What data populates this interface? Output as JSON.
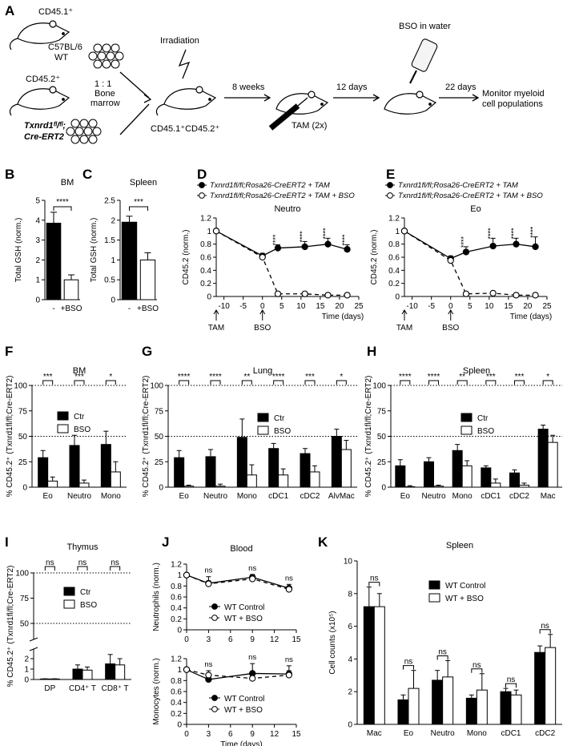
{
  "panel_letters": {
    "A": "A",
    "B": "B",
    "C": "C",
    "D": "D",
    "E": "E",
    "F": "F",
    "G": "G",
    "H": "H",
    "I": "I",
    "J": "J",
    "K": "K"
  },
  "schematic": {
    "donor1_label": "CD45.1⁺",
    "donor1_strain_line1": "C57BL/6",
    "donor1_strain_line2": "WT",
    "donor2_label": "CD45.2⁺",
    "donor2_strain_line1": "Txnrd1ᶠˡ/ᶠˡ;",
    "donor2_strain_line2": "Cre-ERT2",
    "ratio_line1": "1 : 1",
    "ratio_line2": "Bone",
    "ratio_line3": "marrow",
    "irradiation": "Irradiation",
    "chimera_label": "CD45.1⁺CD45.2⁺",
    "step1": "8 weeks",
    "tam": "TAM (2x)",
    "step2": "12 days",
    "bso_water": "BSO in water",
    "step3": "22 days",
    "monitor_line1": "Monitor myeloid",
    "monitor_line2": "cell populations"
  },
  "chart_data": [
    {
      "id": "B",
      "type": "bar",
      "title": "BM",
      "ylabel": "Total GSH (norm.)",
      "categories": [
        "-",
        "+BSO"
      ],
      "values": [
        3.85,
        1.0
      ],
      "errors": [
        0.55,
        0.25
      ],
      "ylim": [
        0,
        5
      ],
      "yticks": [
        0,
        1,
        2,
        3,
        4,
        5
      ],
      "significance": "****"
    },
    {
      "id": "C",
      "type": "bar",
      "title": "Spleen",
      "ylabel": "Total GSH (norm.)",
      "categories": [
        "-",
        "+BSO"
      ],
      "values": [
        1.95,
        1.0
      ],
      "errors": [
        0.15,
        0.18
      ],
      "ylim": [
        0,
        2.5
      ],
      "yticks": [
        0,
        0.5,
        1.0,
        1.5,
        2.0,
        2.5
      ],
      "significance": "***"
    },
    {
      "id": "D",
      "type": "line",
      "title": "Neutro",
      "ylabel": "CD45.2 (norm.)",
      "xlabel": "Time (days)",
      "xlim": [
        -12,
        25
      ],
      "ylim": [
        0,
        1.2
      ],
      "xticks": [
        -10,
        -5,
        0,
        5,
        10,
        15,
        20,
        25
      ],
      "yticks": [
        0,
        0.2,
        0.4,
        0.6,
        0.8,
        1.0,
        1.2
      ],
      "arrows": [
        "TAM",
        "BSO"
      ],
      "series": [
        {
          "name": "Txnrd1fl/fl;Rosa26-CreERT2 + TAM",
          "x": [
            -12,
            0,
            4,
            11,
            17,
            22
          ],
          "y": [
            1.0,
            0.62,
            0.74,
            0.76,
            0.8,
            0.72
          ],
          "err": [
            0.03,
            0.04,
            0.05,
            0.08,
            0.09,
            0.07
          ]
        },
        {
          "name": "Txnrd1fl/fl;Rosa26-CreERT2 + TAM + BSO",
          "x": [
            -12,
            0,
            4,
            11,
            17,
            22
          ],
          "y": [
            1.0,
            0.6,
            0.04,
            0.04,
            0.02,
            0.02
          ],
          "err": [
            0.03,
            0.03,
            0.01,
            0.01,
            0.01,
            0.01
          ]
        }
      ],
      "sig": [
        "****",
        "****",
        "****",
        "****"
      ]
    },
    {
      "id": "E",
      "type": "line",
      "title": "Eo",
      "ylabel": "CD45.2 (norm.)",
      "xlabel": "Time (days)",
      "xlim": [
        -12,
        25
      ],
      "ylim": [
        0,
        1.2
      ],
      "xticks": [
        -10,
        -5,
        0,
        5,
        10,
        15,
        20,
        25
      ],
      "yticks": [
        0,
        0.2,
        0.4,
        0.6,
        0.8,
        1.0,
        1.2
      ],
      "arrows": [
        "TAM",
        "BSO"
      ],
      "series": [
        {
          "name": "Txnrd1fl/fl;Rosa26-CreERT2 + TAM",
          "x": [
            -12,
            0,
            4,
            11,
            17,
            22
          ],
          "y": [
            1.0,
            0.58,
            0.68,
            0.77,
            0.8,
            0.76
          ],
          "err": [
            0.03,
            0.04,
            0.08,
            0.12,
            0.09,
            0.15
          ]
        },
        {
          "name": "Txnrd1fl/fl;Rosa26-CreERT2 + TAM + BSO",
          "x": [
            -12,
            0,
            4,
            11,
            17,
            22
          ],
          "y": [
            1.0,
            0.55,
            0.04,
            0.05,
            0.02,
            0.02
          ],
          "err": [
            0.03,
            0.03,
            0.01,
            0.02,
            0.01,
            0.01
          ]
        }
      ],
      "sig": [
        "****",
        "****",
        "****",
        "****"
      ]
    },
    {
      "id": "F",
      "type": "bar",
      "title": "BM",
      "ylabel": "% CD45.2⁺ (Txnrd1fl/fl;Cre-ERT2)",
      "categories": [
        "Eo",
        "Neutro",
        "Mono"
      ],
      "series": [
        {
          "name": "Ctr",
          "values": [
            29,
            41,
            42
          ],
          "err": [
            7,
            10,
            13
          ]
        },
        {
          "name": "BSO",
          "values": [
            6,
            4,
            15
          ],
          "err": [
            4,
            3,
            10
          ]
        }
      ],
      "ylim": [
        0,
        100
      ],
      "yticks": [
        0,
        25,
        50,
        75,
        100
      ],
      "sig": [
        "***",
        "***",
        "*"
      ]
    },
    {
      "id": "G",
      "type": "bar",
      "title": "Lung",
      "ylabel": "% CD45.2⁺ (Txnrd1fl/fl;Cre-ERT2)",
      "categories": [
        "Eo",
        "Neutro",
        "Mono",
        "cDC1",
        "cDC2",
        "AlvMac"
      ],
      "series": [
        {
          "name": "Ctr",
          "values": [
            29,
            30,
            49,
            38,
            33,
            50
          ],
          "err": [
            7,
            7,
            18,
            5,
            5,
            7
          ]
        },
        {
          "name": "BSO",
          "values": [
            1,
            1,
            12,
            12,
            15,
            37
          ],
          "err": [
            1,
            2,
            10,
            6,
            6,
            9
          ]
        }
      ],
      "ylim": [
        0,
        100
      ],
      "yticks": [
        0,
        25,
        50,
        75,
        100
      ],
      "sig": [
        "****",
        "****",
        "**",
        "****",
        "***",
        "*"
      ]
    },
    {
      "id": "H",
      "type": "bar",
      "title": "Spleen",
      "ylabel": "% CD45.2⁺ (Txnrd1fl/fl;Cre-ERT2)",
      "categories": [
        "Eo",
        "Neutro",
        "Mono",
        "cDC1",
        "cDC2",
        "Mac"
      ],
      "series": [
        {
          "name": "Ctr",
          "values": [
            21,
            25,
            36,
            19,
            14,
            57
          ],
          "err": [
            6,
            4,
            6,
            2,
            3,
            4
          ]
        },
        {
          "name": "BSO",
          "values": [
            0.5,
            1,
            21,
            4,
            2,
            44
          ],
          "err": [
            1,
            1,
            5,
            4,
            2,
            7
          ]
        }
      ],
      "ylim": [
        0,
        100
      ],
      "yticks": [
        0,
        25,
        50,
        75,
        100
      ],
      "sig": [
        "****",
        "****",
        "**",
        "***",
        "***",
        "*"
      ]
    },
    {
      "id": "I",
      "type": "bar",
      "title": "Thymus",
      "ylabel": "% CD45.2⁺ (Txnrd1fl/fl;Cre-ERT2)",
      "categories": [
        "DP",
        "CD4⁺ T",
        "CD8⁺ T"
      ],
      "series": [
        {
          "name": "Ctr",
          "values": [
            0.05,
            1.0,
            1.5
          ],
          "err": [
            0.02,
            0.4,
            0.9
          ]
        },
        {
          "name": "BSO",
          "values": [
            0.05,
            0.9,
            1.4
          ],
          "err": [
            0.02,
            0.3,
            0.6
          ]
        }
      ],
      "yticks_lower": [
        0,
        1,
        2
      ],
      "yticks_upper": [
        50,
        75,
        100
      ],
      "sig": [
        "ns",
        "ns",
        "ns"
      ]
    },
    {
      "id": "J1",
      "type": "line",
      "title": "Blood",
      "ylabel": "Neutrophils (norm.)",
      "xlim": [
        0,
        15
      ],
      "ylim": [
        0,
        1.2
      ],
      "xticks": [
        0,
        3,
        6,
        9,
        12,
        15
      ],
      "yticks": [
        0,
        0.2,
        0.4,
        0.6,
        0.8,
        1.0,
        1.2
      ],
      "series": [
        {
          "name": "WT Control",
          "x": [
            0,
            3,
            9,
            14
          ],
          "y": [
            1.0,
            0.85,
            0.96,
            0.76
          ],
          "err": [
            0.03,
            0.04,
            0.05,
            0.07
          ]
        },
        {
          "name": "WT + BSO",
          "x": [
            0,
            3,
            9,
            14
          ],
          "y": [
            1.0,
            0.84,
            0.93,
            0.74
          ],
          "err": [
            0.03,
            0.13,
            0.08,
            0.04
          ]
        }
      ],
      "sig": [
        "ns",
        "ns",
        "ns"
      ]
    },
    {
      "id": "J2",
      "type": "line",
      "ylabel": "Monocytes (norm.)",
      "xlabel": "Time (days)",
      "xlim": [
        0,
        15
      ],
      "ylim": [
        0,
        1.2
      ],
      "xticks": [
        0,
        3,
        6,
        9,
        12,
        15
      ],
      "yticks": [
        0,
        0.2,
        0.4,
        0.6,
        0.8,
        1.0,
        1.2
      ],
      "series": [
        {
          "name": "WT Control",
          "x": [
            0,
            3,
            9,
            14
          ],
          "y": [
            1.0,
            0.82,
            0.93,
            0.92
          ],
          "err": [
            0.03,
            0.05,
            0.18,
            0.15
          ]
        },
        {
          "name": "WT + BSO",
          "x": [
            0,
            3,
            9,
            14
          ],
          "y": [
            1.0,
            0.9,
            0.84,
            0.9
          ],
          "err": [
            0.03,
            0.08,
            0.05,
            0.08
          ]
        }
      ],
      "sig": [
        "ns",
        "ns",
        "ns"
      ]
    },
    {
      "id": "K",
      "type": "bar",
      "title": "Spleen",
      "ylabel": "Cell counts (x10⁵)",
      "categories": [
        "Mac",
        "Eo",
        "Neutro",
        "Mono",
        "cDC1",
        "cDC2"
      ],
      "series": [
        {
          "name": "WT Control",
          "values": [
            7.2,
            1.5,
            2.7,
            1.6,
            2.0,
            4.4
          ],
          "err": [
            1.2,
            0.3,
            0.6,
            0.2,
            0.2,
            0.4
          ]
        },
        {
          "name": "WT + BSO",
          "values": [
            7.2,
            2.2,
            2.9,
            2.1,
            1.8,
            4.7
          ],
          "err": [
            0.8,
            1.1,
            1.0,
            1.0,
            0.3,
            0.8
          ]
        }
      ],
      "ylim": [
        0,
        10
      ],
      "yticks": [
        0,
        2,
        4,
        6,
        8,
        10
      ],
      "sig": [
        "ns",
        "ns",
        "ns",
        "ns",
        "ns",
        "ns"
      ]
    }
  ]
}
